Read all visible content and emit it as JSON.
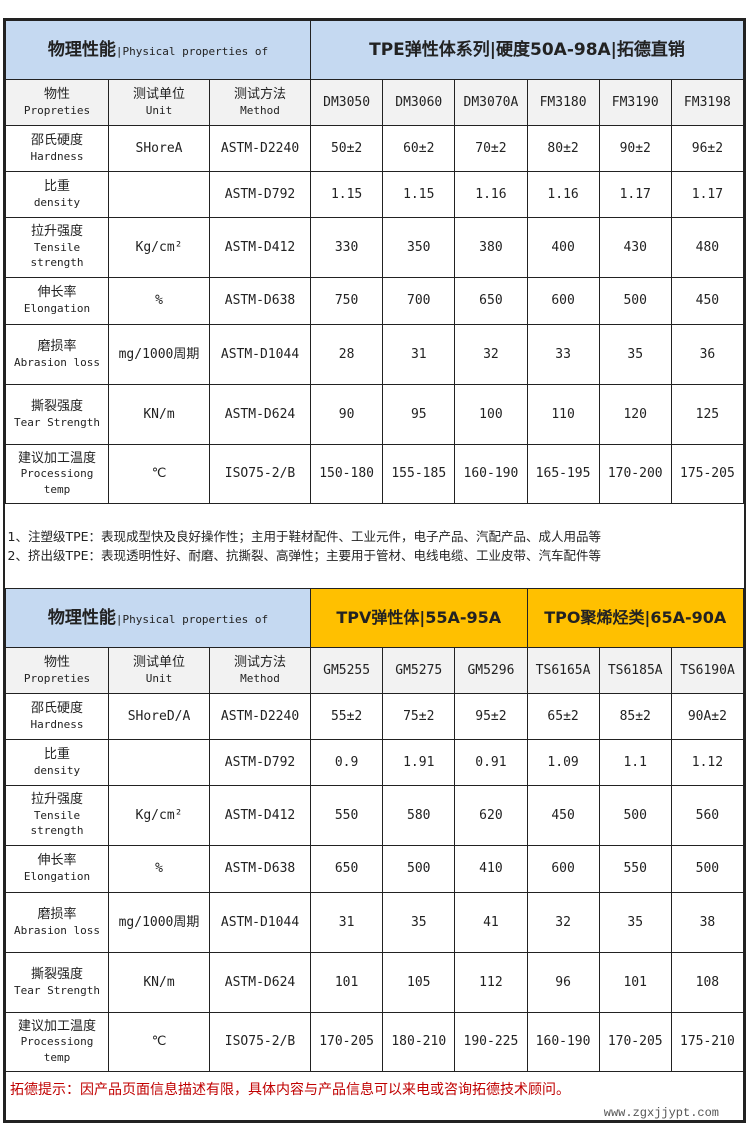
{
  "colors": {
    "header_blue": "#c5d9f1",
    "header_gold": "#ffc000",
    "subheader_grey": "#f2f2f2",
    "footer_red": "#c00000"
  },
  "column_headers": {
    "property_cn": "物性",
    "property_en": "Propreties",
    "unit_cn": "测试单位",
    "unit_en": "Unit",
    "method_cn": "测试方法",
    "method_en": "Method"
  },
  "table1": {
    "title_cn": "物理性能",
    "title_en": "|Physical properties of",
    "series": [
      {
        "label": "TPE弹性体系列|硬度50A-98A|拓德直销"
      }
    ],
    "grades": [
      "DM3050",
      "DM3060",
      "DM3070A",
      "FM3180",
      "FM3190",
      "FM3198"
    ],
    "rows": [
      {
        "cn": "邵氏硬度",
        "en": "Hardness",
        "unit": "SHoreA",
        "method": "ASTM-D2240",
        "values": [
          "50±2",
          "60±2",
          "70±2",
          "80±2",
          "90±2",
          "96±2"
        ]
      },
      {
        "cn": "比重",
        "en": "density",
        "unit": "",
        "method": "ASTM-D792",
        "values": [
          "1.15",
          "1.15",
          "1.16",
          "1.16",
          "1.17",
          "1.17"
        ]
      },
      {
        "cn": "拉升强度",
        "en": "Tensile strength",
        "unit": "Kg/cm²",
        "method": "ASTM-D412",
        "values": [
          "330",
          "350",
          "380",
          "400",
          "430",
          "480"
        ]
      },
      {
        "cn": "伸长率",
        "en": "Elongation",
        "unit": "%",
        "method": "ASTM-D638",
        "values": [
          "750",
          "700",
          "650",
          "600",
          "500",
          "450"
        ]
      },
      {
        "cn": "磨损率",
        "en": "Abrasion loss",
        "unit": "mg/1000周期",
        "method": "ASTM-D1044",
        "values": [
          "28",
          "31",
          "32",
          "33",
          "35",
          "36"
        ]
      },
      {
        "cn": "撕裂强度",
        "en": "Tear Strength",
        "unit": "KN/m",
        "method": "ASTM-D624",
        "values": [
          "90",
          "95",
          "100",
          "110",
          "120",
          "125"
        ]
      },
      {
        "cn": "建议加工温度",
        "en": "Processiong temp",
        "unit": "℃",
        "method": "ISO75-2/B",
        "values": [
          "150-180",
          "155-185",
          "160-190",
          "165-195",
          "170-200",
          "175-205"
        ]
      }
    ]
  },
  "notes": [
    "1、注塑级TPE：表现成型快及良好操作性；主用于鞋材配件、工业元件，电子产品、汽配产品、成人用品等",
    "2、挤出级TPE：表现透明性好、耐磨、抗撕裂、高弹性；主要用于管材、电线电缆、工业皮带、汽车配件等"
  ],
  "table2": {
    "title_cn": "物理性能",
    "title_en": "|Physical properties of",
    "series": [
      {
        "label": "TPV弹性体|55A-95A"
      },
      {
        "label": "TPO聚烯烃类|65A-90A"
      }
    ],
    "grades": [
      "GM5255",
      "GM5275",
      "GM5296",
      "TS6165A",
      "TS6185A",
      "TS6190A"
    ],
    "rows": [
      {
        "cn": "邵氏硬度",
        "en": "Hardness",
        "unit": "SHoreD/A",
        "method": "ASTM-D2240",
        "values": [
          "55±2",
          "75±2",
          "95±2",
          "65±2",
          "85±2",
          "90A±2"
        ]
      },
      {
        "cn": "比重",
        "en": "density",
        "unit": "",
        "method": "ASTM-D792",
        "values": [
          "0.9",
          "1.91",
          "0.91",
          "1.09",
          "1.1",
          "1.12"
        ]
      },
      {
        "cn": "拉升强度",
        "en": "Tensile strength",
        "unit": "Kg/cm²",
        "method": "ASTM-D412",
        "values": [
          "550",
          "580",
          "620",
          "450",
          "500",
          "560"
        ]
      },
      {
        "cn": "伸长率",
        "en": "Elongation",
        "unit": "%",
        "method": "ASTM-D638",
        "values": [
          "650",
          "500",
          "410",
          "600",
          "550",
          "500"
        ]
      },
      {
        "cn": "磨损率",
        "en": "Abrasion loss",
        "unit": "mg/1000周期",
        "method": "ASTM-D1044",
        "values": [
          "31",
          "35",
          "41",
          "32",
          "35",
          "38"
        ]
      },
      {
        "cn": "撕裂强度",
        "en": "Tear Strength",
        "unit": "KN/m",
        "method": "ASTM-D624",
        "values": [
          "101",
          "105",
          "112",
          "96",
          "101",
          "108"
        ]
      },
      {
        "cn": "建议加工温度",
        "en": "Processiong temp",
        "unit": "℃",
        "method": "ISO75-2/B",
        "values": [
          "170-205",
          "180-210",
          "190-225",
          "160-190",
          "170-205",
          "175-210"
        ]
      }
    ]
  },
  "footer": {
    "tip": "拓德提示：因产品页面信息描述有限，具体内容与产品信息可以来电或咨询拓德技术顾问。",
    "watermark": "www.zgxjjypt.com"
  }
}
